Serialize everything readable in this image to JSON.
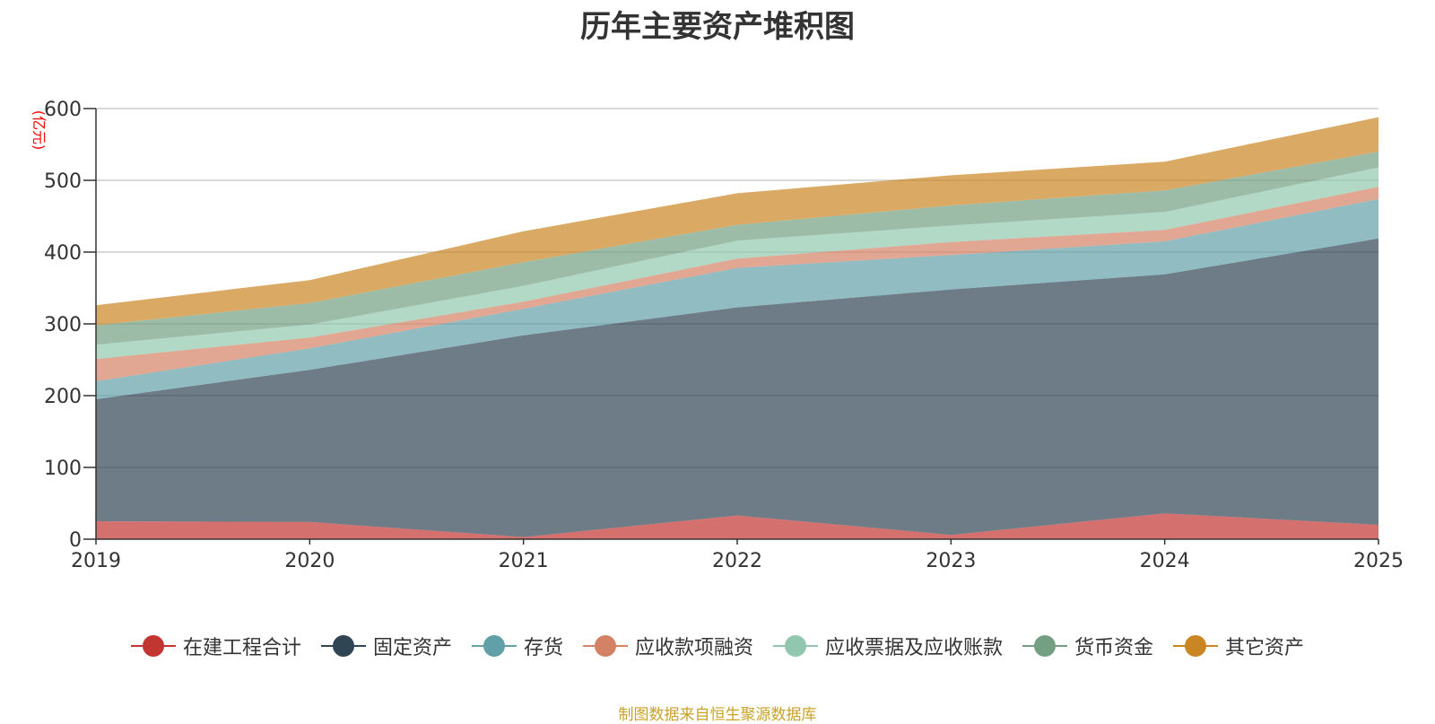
{
  "chart_data": {
    "type": "area",
    "stacked": true,
    "title": "历年主要资产堆积图",
    "unit_label": "(亿元)",
    "x": [
      "2019",
      "2020",
      "2021",
      "2022",
      "2023",
      "2024",
      "2025"
    ],
    "ylim": [
      0,
      600
    ],
    "yticks": [
      0,
      100,
      200,
      300,
      400,
      500,
      600
    ],
    "grid": true,
    "legend_position": "bottom",
    "series": [
      {
        "name": "在建工程合计",
        "color": "#c23531",
        "values": [
          25,
          24,
          3,
          33,
          6,
          36,
          20
        ]
      },
      {
        "name": "固定资产",
        "color": "#2f4554",
        "values": [
          170,
          212,
          281,
          290,
          342,
          333,
          399
        ]
      },
      {
        "name": "存货",
        "color": "#61a0a8",
        "values": [
          25,
          30,
          37,
          55,
          48,
          46,
          55
        ]
      },
      {
        "name": "应收款项融资",
        "color": "#d48265",
        "values": [
          31,
          15,
          10,
          13,
          18,
          16,
          17
        ]
      },
      {
        "name": "应收票据及应收账款",
        "color": "#91c7ae",
        "values": [
          20,
          18,
          22,
          25,
          23,
          25,
          27
        ]
      },
      {
        "name": "货币资金",
        "color": "#749f83",
        "values": [
          27,
          30,
          33,
          22,
          28,
          30,
          22
        ]
      },
      {
        "name": "其它资产",
        "color": "#ca8622",
        "values": [
          28,
          32,
          43,
          44,
          42,
          40,
          48
        ]
      }
    ]
  },
  "source": "制图数据来自恒生聚源数据库"
}
